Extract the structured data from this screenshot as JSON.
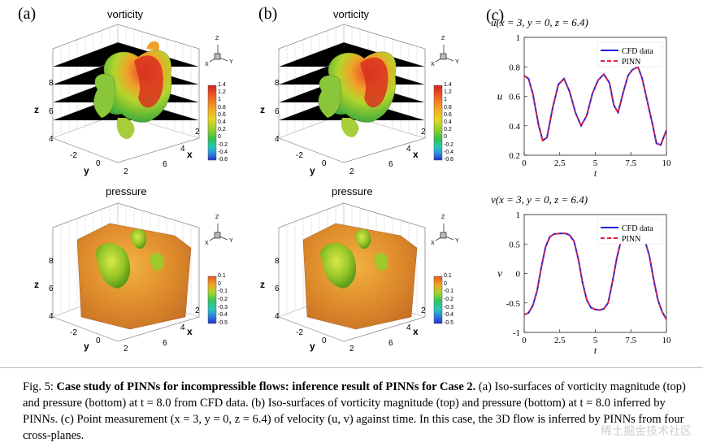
{
  "panels": {
    "a": {
      "label": "(a)",
      "top_title": "vorticity",
      "bottom_title": "pressure"
    },
    "b": {
      "label": "(b)",
      "top_title": "vorticity",
      "bottom_title": "pressure"
    },
    "c": {
      "label": "(c)"
    }
  },
  "axes3d": {
    "z_label": "z",
    "y_label": "y",
    "x_label": "x",
    "z_ticks": [
      "8",
      "6",
      "4"
    ],
    "y_ticks": [
      "-2",
      "0",
      "2"
    ],
    "x_ticks": [
      "2",
      "4",
      "6"
    ]
  },
  "triad": {
    "z": "Z",
    "x": "X",
    "y": "Y"
  },
  "colorbars": {
    "vorticity": [
      "1.4",
      "1.2",
      "1",
      "0.8",
      "0.6",
      "0.4",
      "0.2",
      "0",
      "-0.2",
      "-0.4",
      "-0.6"
    ],
    "pressure": [
      "0.1",
      "0",
      "-0.1",
      "-0.2",
      "-0.3",
      "-0.4",
      "-0.5"
    ]
  },
  "colors": {
    "cfd": "#1f1fe0",
    "pinn": "#e0203a"
  },
  "chart_data": [
    {
      "type": "line",
      "title": "u(x = 3, y = 0, z = 6.4)",
      "xlabel": "t",
      "ylabel": "u",
      "xlim": [
        0,
        10
      ],
      "ylim": [
        0.2,
        1.0
      ],
      "xticks": [
        "0",
        "2.5",
        "5",
        "7.5",
        "10"
      ],
      "yticks": [
        "1",
        "0.8",
        "0.6",
        "0.4",
        "0.2"
      ],
      "legend_position": "top-right",
      "x": [
        0,
        0.3,
        0.6,
        1.0,
        1.3,
        1.6,
        2.0,
        2.4,
        2.8,
        3.2,
        3.6,
        4.0,
        4.4,
        4.8,
        5.2,
        5.6,
        6.0,
        6.3,
        6.6,
        7.0,
        7.3,
        7.6,
        8.0,
        8.3,
        8.6,
        9.0,
        9.3,
        9.6,
        9.8,
        10.0
      ],
      "series": [
        {
          "name": "CFD data",
          "values": [
            0.74,
            0.72,
            0.62,
            0.41,
            0.3,
            0.32,
            0.52,
            0.68,
            0.72,
            0.63,
            0.49,
            0.4,
            0.47,
            0.62,
            0.71,
            0.75,
            0.69,
            0.54,
            0.49,
            0.64,
            0.74,
            0.78,
            0.8,
            0.72,
            0.59,
            0.42,
            0.28,
            0.27,
            0.32,
            0.37
          ]
        },
        {
          "name": "PINN",
          "values": [
            0.74,
            0.72,
            0.62,
            0.41,
            0.3,
            0.32,
            0.52,
            0.68,
            0.72,
            0.63,
            0.49,
            0.4,
            0.47,
            0.62,
            0.71,
            0.75,
            0.69,
            0.54,
            0.49,
            0.64,
            0.74,
            0.78,
            0.8,
            0.72,
            0.59,
            0.42,
            0.28,
            0.27,
            0.32,
            0.37
          ]
        }
      ]
    },
    {
      "type": "line",
      "title": "v(x = 3, y = 0, z = 6.4)",
      "xlabel": "t",
      "ylabel": "v",
      "xlim": [
        0,
        10
      ],
      "ylim": [
        -1,
        1
      ],
      "xticks": [
        "0",
        "2.5",
        "5",
        "7.5",
        "10"
      ],
      "yticks": [
        "1",
        "0.5",
        "0",
        "-0.5",
        "-1"
      ],
      "legend_position": "top-right",
      "x": [
        0,
        0.3,
        0.6,
        0.9,
        1.2,
        1.5,
        1.8,
        2.1,
        2.5,
        2.9,
        3.2,
        3.5,
        3.8,
        4.1,
        4.4,
        4.7,
        5.0,
        5.3,
        5.6,
        5.9,
        6.2,
        6.5,
        6.8,
        7.1,
        7.4,
        7.8,
        8.2,
        8.5,
        8.8,
        9.1,
        9.4,
        9.7,
        10.0
      ],
      "series": [
        {
          "name": "CFD data",
          "values": [
            -0.7,
            -0.67,
            -0.55,
            -0.3,
            0.1,
            0.45,
            0.62,
            0.67,
            0.68,
            0.68,
            0.65,
            0.55,
            0.25,
            -0.15,
            -0.45,
            -0.58,
            -0.61,
            -0.62,
            -0.6,
            -0.5,
            -0.15,
            0.25,
            0.55,
            0.63,
            0.64,
            0.62,
            0.6,
            0.55,
            0.3,
            -0.1,
            -0.45,
            -0.65,
            -0.78
          ]
        },
        {
          "name": "PINN",
          "values": [
            -0.7,
            -0.67,
            -0.55,
            -0.3,
            0.1,
            0.45,
            0.62,
            0.67,
            0.68,
            0.68,
            0.65,
            0.55,
            0.25,
            -0.15,
            -0.45,
            -0.58,
            -0.61,
            -0.62,
            -0.6,
            -0.5,
            -0.15,
            0.25,
            0.55,
            0.63,
            0.64,
            0.62,
            0.6,
            0.55,
            0.3,
            -0.1,
            -0.45,
            -0.65,
            -0.78
          ]
        }
      ]
    }
  ],
  "caption": {
    "fig": "Fig. 5:",
    "bold": "Case study of PINNs for incompressible flows: inference result of PINNs for Case 2.",
    "rest": "(a) Iso-surfaces of vorticity magnitude (top) and pressure (bottom) at t = 8.0 from CFD data. (b) Iso-surfaces of vorticity magnitude (top) and pressure (bottom) at t = 8.0 inferred by PINNs. (c) Point measurement (x = 3, y = 0, z = 6.4) of velocity (u, v) against time. In this case, the 3D flow is inferred by PINNs from four cross-planes."
  },
  "watermark": "稀土掘金技术社区"
}
